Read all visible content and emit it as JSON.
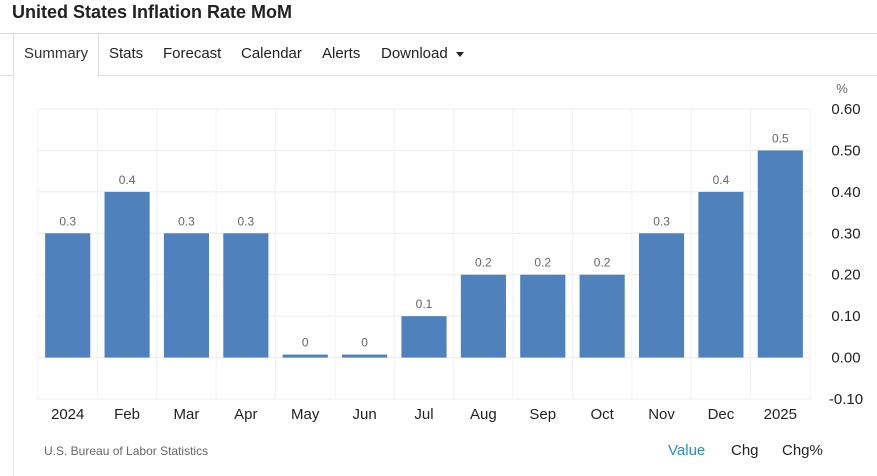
{
  "page": {
    "title": "United States Inflation Rate MoM"
  },
  "tabs": [
    {
      "label": "Summary",
      "active": true
    },
    {
      "label": "Stats"
    },
    {
      "label": "Forecast"
    },
    {
      "label": "Calendar"
    },
    {
      "label": "Alerts"
    },
    {
      "label": "Download",
      "icon": "caret-down-icon"
    }
  ],
  "chart_data": {
    "type": "bar",
    "categories": [
      "2024",
      "Feb",
      "Mar",
      "Apr",
      "May",
      "Jun",
      "Jul",
      "Aug",
      "Sep",
      "Oct",
      "Nov",
      "Dec",
      "2025"
    ],
    "values": [
      0.3,
      0.4,
      0.3,
      0.3,
      0,
      0,
      0.1,
      0.2,
      0.2,
      0.2,
      0.3,
      0.4,
      0.5
    ],
    "data_labels": [
      "0.3",
      "0.4",
      "0.3",
      "0.3",
      "0",
      "0",
      "0.1",
      "0.2",
      "0.2",
      "0.2",
      "0.3",
      "0.4",
      "0.5"
    ],
    "yunit": "%",
    "yticks": [
      -0.1,
      0,
      0.1,
      0.2,
      0.3,
      0.4,
      0.5,
      0.6
    ],
    "ytick_labels": [
      "-0.10",
      "0.00",
      "0.10",
      "0.20",
      "0.30",
      "0.40",
      "0.50",
      "0.60"
    ],
    "ylim": [
      -0.1,
      0.6
    ],
    "yaxis_side": "right",
    "grid": true,
    "bar_color": "#4f81bd"
  },
  "footer": {
    "source": "U.S. Bureau of Labor Statistics",
    "toggles": [
      {
        "label": "Value",
        "active": true,
        "color": "#2a8bd0"
      },
      {
        "label": "Chg"
      },
      {
        "label": "Chg%"
      }
    ]
  }
}
